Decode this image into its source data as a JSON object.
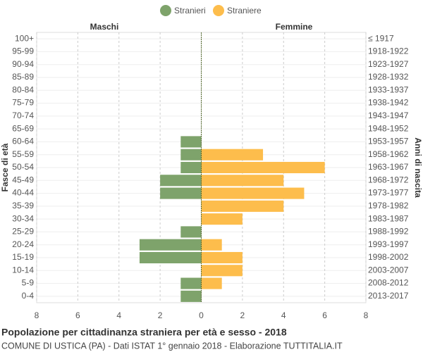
{
  "chart_data": {
    "type": "pyramid",
    "title": "Popolazione per cittadinanza straniera per età e sesso - 2018",
    "subtitle": "COMUNE DI USTICA (PA) - Dati ISTAT 1° gennaio 2018 - Elaborazione TUTTITALIA.IT",
    "left_label": "Maschi",
    "right_label": "Femmine",
    "ylabel": "Fasce di età",
    "y2label": "Anni di nascita",
    "categories": [
      "100+",
      "95-99",
      "90-94",
      "85-89",
      "80-84",
      "75-79",
      "70-74",
      "65-69",
      "60-64",
      "55-59",
      "50-54",
      "45-49",
      "40-44",
      "35-39",
      "30-34",
      "25-29",
      "20-24",
      "15-19",
      "10-14",
      "5-9",
      "0-4"
    ],
    "birth_years": [
      "≤ 1917",
      "1918-1922",
      "1923-1927",
      "1928-1932",
      "1933-1937",
      "1938-1942",
      "1943-1947",
      "1948-1952",
      "1953-1957",
      "1958-1962",
      "1963-1967",
      "1968-1972",
      "1973-1977",
      "1978-1982",
      "1983-1987",
      "1988-1992",
      "1993-1997",
      "1998-2002",
      "2003-2007",
      "2008-2012",
      "2013-2017"
    ],
    "series": [
      {
        "name": "Stranieri",
        "color": "#7ea36b",
        "side": "left",
        "values": [
          0,
          0,
          0,
          0,
          0,
          0,
          0,
          0,
          1,
          1,
          1,
          2,
          2,
          0,
          0,
          1,
          3,
          3,
          0,
          1,
          1
        ]
      },
      {
        "name": "Straniere",
        "color": "#fdbd4c",
        "side": "right",
        "values": [
          0,
          0,
          0,
          0,
          0,
          0,
          0,
          0,
          0,
          3,
          6,
          4,
          5,
          4,
          2,
          0,
          1,
          2,
          2,
          1,
          0
        ]
      }
    ],
    "xlim": [
      -8,
      8
    ],
    "xticks": [
      {
        "value": -8,
        "label": "8"
      },
      {
        "value": -6,
        "label": "6"
      },
      {
        "value": -4,
        "label": "4"
      },
      {
        "value": -2,
        "label": "2"
      },
      0,
      2,
      4,
      6,
      8
    ],
    "grid": true
  }
}
